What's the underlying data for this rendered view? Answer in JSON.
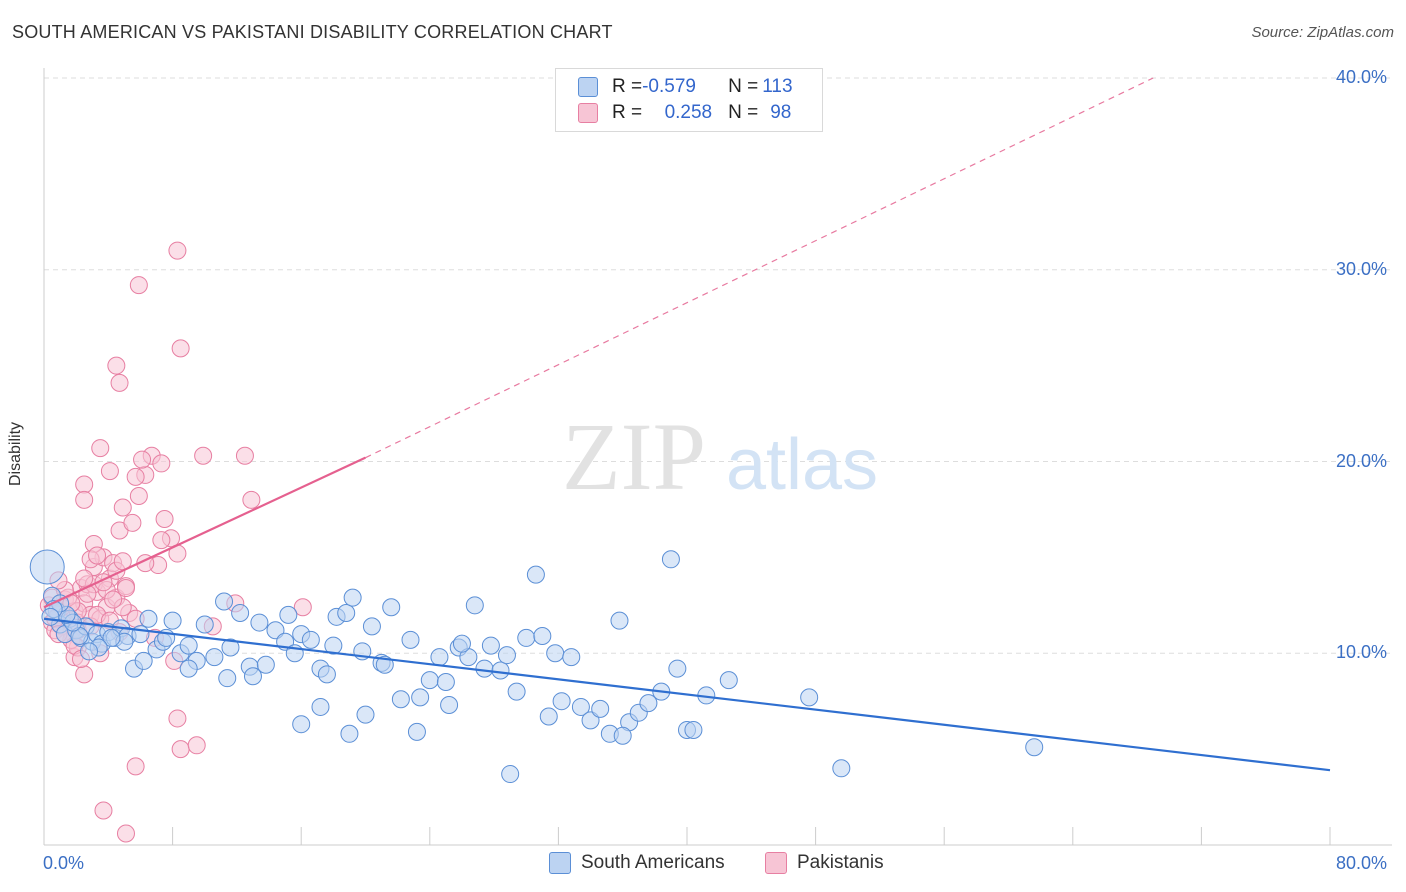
{
  "header": {
    "title": "SOUTH AMERICAN VS PAKISTANI DISABILITY CORRELATION CHART",
    "source": "Source: ZipAtlas.com"
  },
  "watermark": {
    "zip": "ZIP",
    "atlas": "atlas"
  },
  "legend": {
    "rows": [
      {
        "r_label": "R = ",
        "r_value": "-0.579",
        "n_label": "N = ",
        "n_value": "113",
        "color": "#5b8fd6",
        "fill": "#bcd3f2"
      },
      {
        "r_label": "R = ",
        "r_value": "0.258",
        "n_label": "N = ",
        "n_value": "98",
        "color": "#e77fa2",
        "fill": "#f7c5d5"
      }
    ]
  },
  "chart_data": {
    "type": "scatter",
    "title": "SOUTH AMERICAN VS PAKISTANI DISABILITY CORRELATION CHART",
    "xlabel": "",
    "ylabel": "Disability",
    "xlim": [
      0,
      80
    ],
    "ylim": [
      0,
      40
    ],
    "x_tick_labels": [
      "0.0%",
      "80.0%"
    ],
    "y_ticks": [
      10,
      20,
      30,
      40
    ],
    "y_tick_labels": [
      "10.0%",
      "20.0%",
      "30.0%",
      "40.0%"
    ],
    "grid": true,
    "legend_position": "top-center",
    "series": [
      {
        "name": "South Americans",
        "color": "#5b8fd6",
        "fill": "#bcd3f2",
        "trend": {
          "x0": 0,
          "y0": 11.8,
          "x1": 80,
          "y1": 3.9,
          "style": "solid"
        },
        "points": [
          [
            0.2,
            14.5
          ],
          [
            0.5,
            13.0
          ],
          [
            0.8,
            12.2
          ],
          [
            1.0,
            11.5
          ],
          [
            1.3,
            11.0
          ],
          [
            1.6,
            11.8
          ],
          [
            2.0,
            11.2
          ],
          [
            2.3,
            10.8
          ],
          [
            2.6,
            11.4
          ],
          [
            3.0,
            10.6
          ],
          [
            3.3,
            11.0
          ],
          [
            3.6,
            10.5
          ],
          [
            4.0,
            11.1
          ],
          [
            4.4,
            10.8
          ],
          [
            4.8,
            11.3
          ],
          [
            5.2,
            10.9
          ],
          [
            5.6,
            9.2
          ],
          [
            6.0,
            11.0
          ],
          [
            6.5,
            11.8
          ],
          [
            7.0,
            10.2
          ],
          [
            7.4,
            10.6
          ],
          [
            8.0,
            11.7
          ],
          [
            8.5,
            10.0
          ],
          [
            9.0,
            10.4
          ],
          [
            9.5,
            9.6
          ],
          [
            10.0,
            11.5
          ],
          [
            10.6,
            9.8
          ],
          [
            11.2,
            12.7
          ],
          [
            11.6,
            10.3
          ],
          [
            12.2,
            12.1
          ],
          [
            12.8,
            9.3
          ],
          [
            13.4,
            11.6
          ],
          [
            13.8,
            9.4
          ],
          [
            14.4,
            11.2
          ],
          [
            15.0,
            10.6
          ],
          [
            15.6,
            10.0
          ],
          [
            16.0,
            11.0
          ],
          [
            16.6,
            10.7
          ],
          [
            17.2,
            9.2
          ],
          [
            17.6,
            8.9
          ],
          [
            18.2,
            11.9
          ],
          [
            18.8,
            12.1
          ],
          [
            19.2,
            12.9
          ],
          [
            19.8,
            10.1
          ],
          [
            20.4,
            11.4
          ],
          [
            21.0,
            9.5
          ],
          [
            21.6,
            12.4
          ],
          [
            22.2,
            7.6
          ],
          [
            22.8,
            10.7
          ],
          [
            23.4,
            7.7
          ],
          [
            24.0,
            8.6
          ],
          [
            24.6,
            9.8
          ],
          [
            25.2,
            7.3
          ],
          [
            25.8,
            10.3
          ],
          [
            26.4,
            9.8
          ],
          [
            26.8,
            12.5
          ],
          [
            27.4,
            9.2
          ],
          [
            27.8,
            10.4
          ],
          [
            28.4,
            9.1
          ],
          [
            28.8,
            9.9
          ],
          [
            29.4,
            8.0
          ],
          [
            30.0,
            10.8
          ],
          [
            30.6,
            14.1
          ],
          [
            31.0,
            10.9
          ],
          [
            31.4,
            6.7
          ],
          [
            31.8,
            10.0
          ],
          [
            32.2,
            7.5
          ],
          [
            32.8,
            9.8
          ],
          [
            33.4,
            7.2
          ],
          [
            34.0,
            6.5
          ],
          [
            34.6,
            7.1
          ],
          [
            35.2,
            5.8
          ],
          [
            35.8,
            11.7
          ],
          [
            36.4,
            6.4
          ],
          [
            37.0,
            6.9
          ],
          [
            37.6,
            7.4
          ],
          [
            38.4,
            8.0
          ],
          [
            39.0,
            14.9
          ],
          [
            39.4,
            9.2
          ],
          [
            40.0,
            6.0
          ],
          [
            40.4,
            6.0
          ],
          [
            41.2,
            7.8
          ],
          [
            42.6,
            8.6
          ],
          [
            47.6,
            7.7
          ],
          [
            49.6,
            4.0
          ],
          [
            61.6,
            5.1
          ],
          [
            17.2,
            7.2
          ],
          [
            16.0,
            6.3
          ],
          [
            13.0,
            8.8
          ],
          [
            11.4,
            8.7
          ],
          [
            9.0,
            9.2
          ],
          [
            7.6,
            10.8
          ],
          [
            6.2,
            9.6
          ],
          [
            5.0,
            10.6
          ],
          [
            4.2,
            10.8
          ],
          [
            3.4,
            10.3
          ],
          [
            2.8,
            10.1
          ],
          [
            2.2,
            10.9
          ],
          [
            1.8,
            11.6
          ],
          [
            1.4,
            12.0
          ],
          [
            1.0,
            12.6
          ],
          [
            0.6,
            12.3
          ],
          [
            0.4,
            11.9
          ],
          [
            19.0,
            5.8
          ],
          [
            20.0,
            6.8
          ],
          [
            23.2,
            5.9
          ],
          [
            25.0,
            8.5
          ],
          [
            29.0,
            3.7
          ],
          [
            36.0,
            5.7
          ],
          [
            15.2,
            12.0
          ],
          [
            18.0,
            10.4
          ],
          [
            21.2,
            9.4
          ],
          [
            26.0,
            10.5
          ]
        ]
      },
      {
        "name": "Pakistanis",
        "color": "#e77fa2",
        "fill": "#f7c5d5",
        "trend": {
          "x0": 0,
          "y0": 12.4,
          "x1": 20,
          "y1": 20.2,
          "style": "solid",
          "ext_x1": 69,
          "ext_y1": 40.0,
          "ext_style": "dashed"
        },
        "points": [
          [
            0.3,
            12.5
          ],
          [
            0.5,
            11.6
          ],
          [
            0.7,
            11.2
          ],
          [
            0.9,
            12.0
          ],
          [
            1.1,
            11.4
          ],
          [
            1.3,
            12.8
          ],
          [
            1.5,
            11.9
          ],
          [
            1.7,
            11.1
          ],
          [
            1.9,
            12.2
          ],
          [
            2.1,
            11.6
          ],
          [
            2.3,
            13.4
          ],
          [
            2.5,
            12.6
          ],
          [
            2.7,
            13.6
          ],
          [
            2.9,
            12.0
          ],
          [
            3.1,
            14.5
          ],
          [
            3.3,
            13.2
          ],
          [
            3.5,
            11.8
          ],
          [
            3.7,
            15.0
          ],
          [
            3.9,
            12.4
          ],
          [
            4.1,
            13.9
          ],
          [
            4.3,
            14.7
          ],
          [
            4.5,
            12.9
          ],
          [
            4.7,
            16.4
          ],
          [
            4.9,
            17.6
          ],
          [
            5.1,
            13.5
          ],
          [
            5.3,
            12.1
          ],
          [
            5.5,
            16.8
          ],
          [
            5.9,
            18.2
          ],
          [
            6.3,
            19.3
          ],
          [
            6.7,
            20.3
          ],
          [
            7.1,
            14.6
          ],
          [
            7.5,
            17.0
          ],
          [
            7.9,
            16.0
          ],
          [
            8.3,
            15.2
          ],
          [
            5.7,
            19.2
          ],
          [
            4.1,
            19.5
          ],
          [
            3.5,
            20.7
          ],
          [
            2.5,
            18.8
          ],
          [
            2.5,
            18.0
          ],
          [
            6.1,
            20.1
          ],
          [
            7.3,
            19.9
          ],
          [
            9.9,
            20.3
          ],
          [
            12.5,
            20.3
          ],
          [
            12.9,
            18.0
          ],
          [
            5.9,
            29.2
          ],
          [
            8.3,
            31.0
          ],
          [
            8.5,
            25.9
          ],
          [
            4.5,
            25.0
          ],
          [
            4.7,
            24.1
          ],
          [
            8.1,
            9.6
          ],
          [
            8.3,
            6.6
          ],
          [
            8.5,
            5.0
          ],
          [
            9.5,
            5.2
          ],
          [
            5.7,
            4.1
          ],
          [
            3.7,
            1.8
          ],
          [
            5.1,
            0.6
          ],
          [
            2.5,
            8.9
          ],
          [
            1.9,
            9.8
          ],
          [
            2.1,
            10.3
          ],
          [
            3.5,
            10.0
          ],
          [
            10.5,
            11.4
          ],
          [
            11.9,
            12.6
          ],
          [
            16.1,
            12.4
          ],
          [
            4.9,
            12.4
          ],
          [
            5.7,
            11.8
          ],
          [
            6.9,
            10.8
          ],
          [
            3.1,
            13.6
          ],
          [
            2.7,
            13.1
          ],
          [
            1.5,
            12.9
          ],
          [
            1.1,
            12.4
          ],
          [
            0.7,
            11.8
          ],
          [
            0.5,
            12.9
          ],
          [
            1.7,
            10.7
          ],
          [
            2.1,
            11.2
          ],
          [
            2.9,
            11.4
          ],
          [
            3.3,
            12.0
          ],
          [
            4.1,
            11.7
          ],
          [
            4.5,
            14.3
          ],
          [
            5.1,
            13.4
          ],
          [
            3.9,
            13.3
          ],
          [
            3.1,
            15.7
          ],
          [
            2.9,
            14.9
          ],
          [
            1.3,
            13.3
          ],
          [
            0.9,
            11.0
          ],
          [
            1.9,
            10.4
          ],
          [
            2.3,
            9.7
          ],
          [
            4.3,
            12.8
          ],
          [
            4.7,
            11.1
          ],
          [
            6.3,
            14.7
          ],
          [
            7.3,
            15.9
          ],
          [
            2.1,
            12.2
          ],
          [
            1.3,
            11.0
          ],
          [
            0.9,
            13.8
          ],
          [
            3.7,
            13.7
          ],
          [
            2.5,
            13.9
          ],
          [
            4.9,
            14.8
          ],
          [
            3.3,
            15.1
          ],
          [
            1.7,
            12.6
          ]
        ]
      }
    ]
  },
  "bottom_legend": {
    "items": [
      {
        "label": "South Americans",
        "color": "#5b8fd6",
        "fill": "#bcd3f2"
      },
      {
        "label": "Pakistanis",
        "color": "#e77fa2",
        "fill": "#f7c5d5"
      }
    ]
  }
}
